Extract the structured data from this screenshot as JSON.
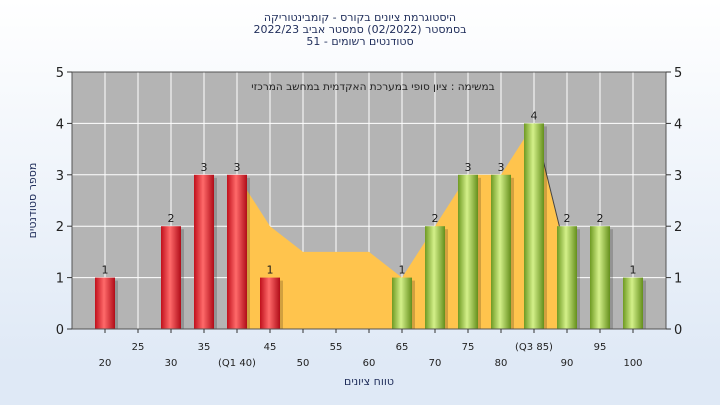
{
  "title_lines": [
    "היסטוגרמת ציונים בקורס - קומבינטוריקה",
    "בסמסטר  (02/2022)  סמסטר אביב 2022/23",
    "51 - סטודנטים רשומים"
  ],
  "chart_data": {
    "type": "bar",
    "title": "היסטוגרמת ציונים בקורס - קומבינטוריקה",
    "subtitle": "בסמסטר  (02/2022)  סמסטר אביב 2022/23 ; 51 - סטודנטים רשומים",
    "annotation": "במשימה : ציון סופי במערכת האקדמית במחשב המרכזי",
    "xlabel": "טווח ציונים",
    "ylabel": "מספר סטודנטים",
    "ylim": [
      0,
      5
    ],
    "yticks": [
      0,
      1,
      2,
      3,
      4,
      5
    ],
    "grid": true,
    "x_ticks": [
      {
        "x": 20,
        "label": "20",
        "row": 1
      },
      {
        "x": 25,
        "label": "25",
        "row": 0
      },
      {
        "x": 30,
        "label": "30",
        "row": 1
      },
      {
        "x": 35,
        "label": "35",
        "row": 0
      },
      {
        "x": 40,
        "label": "(Q1 40)",
        "row": 1
      },
      {
        "x": 45,
        "label": "45",
        "row": 0
      },
      {
        "x": 50,
        "label": "50",
        "row": 1
      },
      {
        "x": 55,
        "label": "55",
        "row": 0
      },
      {
        "x": 60,
        "label": "60",
        "row": 1
      },
      {
        "x": 65,
        "label": "65",
        "row": 0
      },
      {
        "x": 70,
        "label": "70",
        "row": 1
      },
      {
        "x": 75,
        "label": "75",
        "row": 0
      },
      {
        "x": 80,
        "label": "80",
        "row": 1
      },
      {
        "x": 85,
        "label": "(Q3 85)",
        "row": 0
      },
      {
        "x": 90,
        "label": "90",
        "row": 1
      },
      {
        "x": 95,
        "label": "95",
        "row": 0
      },
      {
        "x": 100,
        "label": "100",
        "row": 1
      }
    ],
    "bars": [
      {
        "x": 20,
        "value": 1,
        "color": "red"
      },
      {
        "x": 30,
        "value": 2,
        "color": "red"
      },
      {
        "x": 35,
        "value": 3,
        "color": "red"
      },
      {
        "x": 40,
        "value": 3,
        "color": "red"
      },
      {
        "x": 45,
        "value": 1,
        "color": "red"
      },
      {
        "x": 65,
        "value": 1,
        "color": "green"
      },
      {
        "x": 70,
        "value": 2,
        "color": "green"
      },
      {
        "x": 75,
        "value": 3,
        "color": "green"
      },
      {
        "x": 80,
        "value": 3,
        "color": "green"
      },
      {
        "x": 85,
        "value": 4,
        "color": "green"
      },
      {
        "x": 90,
        "value": 2,
        "color": "green"
      },
      {
        "x": 95,
        "value": 2,
        "color": "green"
      },
      {
        "x": 100,
        "value": 1,
        "color": "green"
      }
    ],
    "area": {
      "color": "#ffc44d",
      "points": [
        [
          40,
          3
        ],
        [
          45,
          2
        ],
        [
          50,
          1.5
        ],
        [
          55,
          1.5
        ],
        [
          60,
          1.5
        ],
        [
          65,
          1
        ],
        [
          70,
          2
        ],
        [
          75,
          3
        ],
        [
          80,
          3
        ],
        [
          85,
          4
        ],
        [
          90,
          1.4
        ]
      ]
    },
    "colors": {
      "plot_bg": "#b4b4b4",
      "red_light": "#ff6a6a",
      "red_dark": "#c0101c",
      "green_light": "#c8e87a",
      "green_dark": "#6e9a22"
    }
  }
}
